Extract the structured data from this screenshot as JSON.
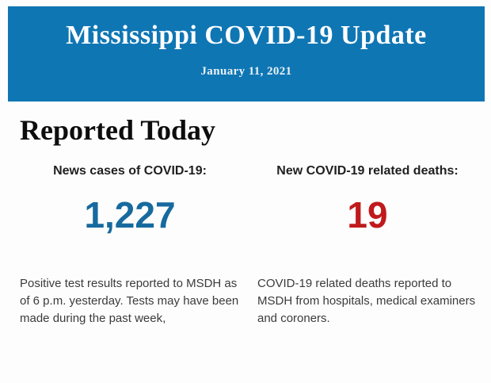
{
  "page": {
    "background_color": "#fdfdfd"
  },
  "header": {
    "bg_color": "#0f76b4",
    "title": "Mississippi COVID-19 Update",
    "date": "January 11, 2021"
  },
  "section": {
    "heading": "Reported Today"
  },
  "stats": [
    {
      "label": "News cases of COVID-19:",
      "value": "1,227",
      "value_color": "#176a9e",
      "description": "Positive test results reported to MSDH as of 6 p.m. yesterday. Tests may have been made during the past week,"
    },
    {
      "label": "New COVID-19 related deaths:",
      "value": "19",
      "value_color": "#c01a1c",
      "description": "COVID-19 related deaths reported to MSDH from hospitals, medical examiners and coroners."
    }
  ]
}
